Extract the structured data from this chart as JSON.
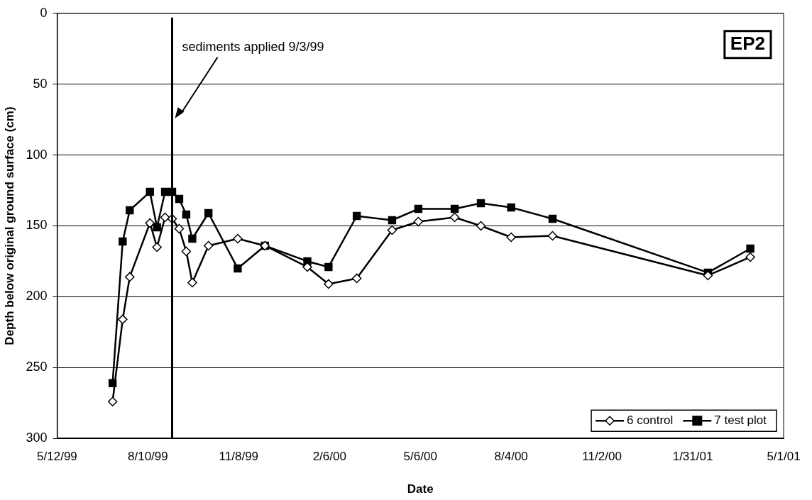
{
  "chart_data": {
    "type": "line",
    "xlabel": "Date",
    "ylabel": "Depth below original ground surface (cm)",
    "x": [
      "1999-07-06",
      "1999-07-16",
      "1999-07-23",
      "1999-08-12",
      "1999-08-19",
      "1999-08-27",
      "1999-09-03",
      "1999-09-10",
      "1999-09-17",
      "1999-09-23",
      "1999-10-09",
      "1999-11-07",
      "1999-12-04",
      "2000-01-15",
      "2000-02-05",
      "2000-03-04",
      "2000-04-08",
      "2000-05-04",
      "2000-06-09",
      "2000-07-05",
      "2000-08-04",
      "2000-09-14",
      "2001-02-15",
      "2001-03-29"
    ],
    "series": [
      {
        "name": "6 control",
        "color": "#000000",
        "marker": "diamond",
        "values": [
          274,
          216,
          186,
          148,
          165,
          144,
          145,
          152,
          168,
          190,
          164,
          159,
          164,
          179,
          191,
          187,
          153,
          147,
          144,
          150,
          158,
          157,
          185,
          172
        ]
      },
      {
        "name": "7 test plot",
        "color": "#000000",
        "marker": "square",
        "values": [
          261,
          161,
          139,
          126,
          151,
          126,
          126,
          131,
          142,
          159,
          141,
          180,
          164,
          175,
          179,
          143,
          146,
          138,
          138,
          134,
          137,
          145,
          183,
          166
        ]
      }
    ],
    "xlim": [
      "1999-05-12",
      "2001-05-01"
    ],
    "xticks": [
      {
        "value": "1999-05-12",
        "label": "5/12/99"
      },
      {
        "value": "1999-08-10",
        "label": "8/10/99"
      },
      {
        "value": "1999-11-08",
        "label": "11/8/99"
      },
      {
        "value": "2000-02-06",
        "label": "2/6/00"
      },
      {
        "value": "2000-05-06",
        "label": "5/6/00"
      },
      {
        "value": "2000-08-04",
        "label": "8/4/00"
      },
      {
        "value": "2000-11-02",
        "label": "11/2/00"
      },
      {
        "value": "2001-01-31",
        "label": "1/31/01"
      },
      {
        "value": "2001-05-01",
        "label": "5/1/01"
      }
    ],
    "ylim": [
      300,
      0
    ],
    "yticks": [
      0,
      50,
      100,
      150,
      200,
      250,
      300
    ],
    "grid": "y",
    "legend": "bottom right",
    "line_style": "solid",
    "ref_lines": [
      {
        "axis": "x",
        "value": "1999-09-03",
        "label": "sediments applied 9/3/99",
        "color": "#000000"
      }
    ],
    "annotations": [
      "EP2"
    ]
  }
}
